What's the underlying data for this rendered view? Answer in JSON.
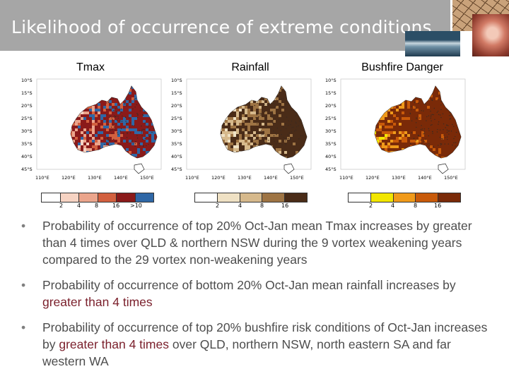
{
  "slide": {
    "title": "Likelihood of occurrence of extreme conditions"
  },
  "colors": {
    "title_bar": "#a6a6a6",
    "bullet_text": "#4d4d4d",
    "highlight_text": "#7a1f2b"
  },
  "panels": [
    {
      "label": "Tmax",
      "lat_labels": [
        "10°S",
        "15°S",
        "20°S",
        "25°S",
        "30°S",
        "35°S",
        "40°S",
        "45°S"
      ],
      "lon_labels": [
        "110°E",
        "120°E",
        "130°E",
        "140°E",
        "150°E"
      ],
      "colorbar_colors": [
        "#ffffff",
        "#f6d3c3",
        "#eba58c",
        "#d2603f",
        "#8a1a1a",
        "#2f67a6"
      ],
      "colorbar_labels": [
        "2",
        "4",
        "8",
        "16",
        ">10"
      ]
    },
    {
      "label": "Rainfall",
      "lat_labels": [
        "10°S",
        "15°S",
        "20°S",
        "25°S",
        "30°S",
        "35°S",
        "40°S",
        "45°S"
      ],
      "lon_labels": [
        "110°E",
        "120°E",
        "130°E",
        "140°E",
        "150°E"
      ],
      "colorbar_colors": [
        "#ffffff",
        "#efe1c4",
        "#d6b98c",
        "#9e7444",
        "#4a2c18"
      ],
      "colorbar_labels": [
        "2",
        "4",
        "8",
        "16"
      ]
    },
    {
      "label": "Bushfire Danger",
      "lat_labels": [
        "10°S",
        "15°S",
        "20°S",
        "25°S",
        "30°S",
        "35°S",
        "40°S",
        "45°S"
      ],
      "lon_labels": [
        "110°E",
        "120°E",
        "130°E",
        "140°E",
        "150°E"
      ],
      "colorbar_colors": [
        "#ffffff",
        "#f2e600",
        "#f09a1a",
        "#c85a0a",
        "#7a2a08"
      ],
      "colorbar_labels": [
        "2",
        "4",
        "8",
        "16"
      ]
    }
  ],
  "bullets": [
    {
      "parts": [
        "Probability of occurrence of top 20% Oct-Jan mean Tmax increases by greater than 4 times over QLD & northern NSW during the 9 vortex weakening years compared to the 29 vortex non-weakening years"
      ]
    },
    {
      "parts": [
        "Probability of occurrence of bottom 20% Oct-Jan mean rainfall increases by ",
        "greater than 4 times"
      ]
    },
    {
      "parts": [
        "Probability of occurrence of top 20% bushfire risk conditions of Oct-Jan increases by ",
        "greater than 4 times",
        " over QLD, northern NSW, north eastern SA and far western WA"
      ]
    }
  ]
}
